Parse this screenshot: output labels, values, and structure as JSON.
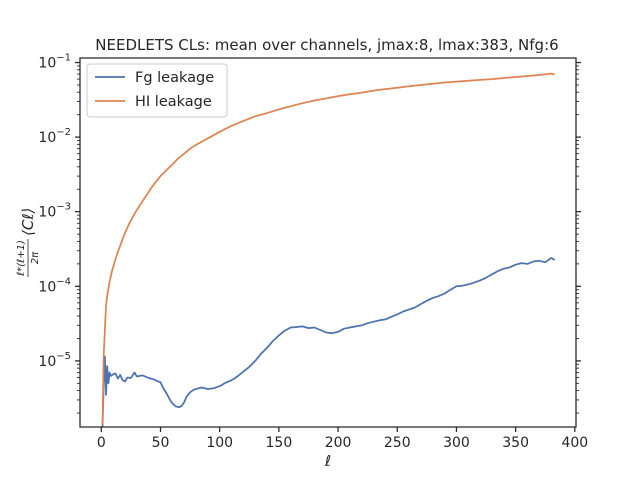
{
  "chart_data": {
    "type": "line",
    "title": "NEEDLETS CLs: mean over channels, jmax:8, lmax:383, Nfg:6",
    "xlabel": "ℓ",
    "ylabel": "ℓ*(ℓ+1)/2π ⟨Cℓ⟩",
    "xlim": [
      -18,
      401
    ],
    "ylim": [
      1.3e-06,
      0.115
    ],
    "yscale": "log",
    "grid": false,
    "legend_position": "top-left",
    "x_ticks": [
      0,
      50,
      100,
      150,
      200,
      250,
      300,
      350,
      400
    ],
    "x_tick_labels": [
      "0",
      "50",
      "100",
      "150",
      "200",
      "250",
      "300",
      "350",
      "400"
    ],
    "y_ticks": [
      1e-05,
      0.0001,
      0.001,
      0.01,
      0.1
    ],
    "y_tick_labels": [
      {
        "base": "10",
        "exp": "−5"
      },
      {
        "base": "10",
        "exp": "−4"
      },
      {
        "base": "10",
        "exp": "−3"
      },
      {
        "base": "10",
        "exp": "−2"
      },
      {
        "base": "10",
        "exp": "−1"
      }
    ],
    "series": [
      {
        "name": "Fg leakage",
        "color": "#4c72b0",
        "points": [
          [
            1,
            1.3e-06
          ],
          [
            2,
            5e-06
          ],
          [
            3,
            1.15e-05
          ],
          [
            4,
            3.5e-06
          ],
          [
            5,
            8.5e-06
          ],
          [
            6,
            5e-06
          ],
          [
            7,
            7e-06
          ],
          [
            8,
            6.3e-06
          ],
          [
            10,
            6.6e-06
          ],
          [
            12,
            6.8e-06
          ],
          [
            14,
            5.8e-06
          ],
          [
            16,
            6.5e-06
          ],
          [
            18,
            5.5e-06
          ],
          [
            20,
            5.3e-06
          ],
          [
            22,
            6e-06
          ],
          [
            25,
            5.9e-06
          ],
          [
            28,
            7e-06
          ],
          [
            30,
            6.2e-06
          ],
          [
            35,
            6.4e-06
          ],
          [
            40,
            5.9e-06
          ],
          [
            45,
            5.6e-06
          ],
          [
            48,
            5.3e-06
          ],
          [
            50,
            5.2e-06
          ],
          [
            52,
            4.4e-06
          ],
          [
            55,
            3.7e-06
          ],
          [
            58,
            3e-06
          ],
          [
            60,
            2.7e-06
          ],
          [
            63,
            2.45e-06
          ],
          [
            66,
            2.4e-06
          ],
          [
            68,
            2.5e-06
          ],
          [
            70,
            2.8e-06
          ],
          [
            72,
            3.3e-06
          ],
          [
            75,
            3.8e-06
          ],
          [
            78,
            4.1e-06
          ],
          [
            80,
            4.2e-06
          ],
          [
            85,
            4.4e-06
          ],
          [
            90,
            4.2e-06
          ],
          [
            95,
            4.3e-06
          ],
          [
            100,
            4.6e-06
          ],
          [
            105,
            5.1e-06
          ],
          [
            110,
            5.5e-06
          ],
          [
            115,
            6.2e-06
          ],
          [
            120,
            7.2e-06
          ],
          [
            125,
            8.3e-06
          ],
          [
            130,
            1e-05
          ],
          [
            135,
            1.25e-05
          ],
          [
            140,
            1.5e-05
          ],
          [
            145,
            1.85e-05
          ],
          [
            150,
            2.2e-05
          ],
          [
            155,
            2.55e-05
          ],
          [
            160,
            2.8e-05
          ],
          [
            165,
            2.85e-05
          ],
          [
            170,
            2.9e-05
          ],
          [
            175,
            2.75e-05
          ],
          [
            180,
            2.8e-05
          ],
          [
            185,
            2.6e-05
          ],
          [
            190,
            2.4e-05
          ],
          [
            195,
            2.35e-05
          ],
          [
            200,
            2.45e-05
          ],
          [
            205,
            2.7e-05
          ],
          [
            210,
            2.8e-05
          ],
          [
            215,
            2.9e-05
          ],
          [
            220,
            3e-05
          ],
          [
            225,
            3.2e-05
          ],
          [
            230,
            3.35e-05
          ],
          [
            235,
            3.5e-05
          ],
          [
            240,
            3.6e-05
          ],
          [
            245,
            3.9e-05
          ],
          [
            250,
            4.2e-05
          ],
          [
            255,
            4.6e-05
          ],
          [
            260,
            4.9e-05
          ],
          [
            265,
            5.2e-05
          ],
          [
            270,
            5.8e-05
          ],
          [
            275,
            6.4e-05
          ],
          [
            280,
            7e-05
          ],
          [
            285,
            7.4e-05
          ],
          [
            290,
            8e-05
          ],
          [
            295,
            9e-05
          ],
          [
            300,
            0.0001
          ],
          [
            305,
            0.000102
          ],
          [
            310,
            0.000106
          ],
          [
            315,
            0.000112
          ],
          [
            320,
            0.00012
          ],
          [
            325,
            0.00013
          ],
          [
            330,
            0.000145
          ],
          [
            335,
            0.00016
          ],
          [
            340,
            0.000172
          ],
          [
            345,
            0.00018
          ],
          [
            350,
            0.000195
          ],
          [
            355,
            0.000205
          ],
          [
            360,
            0.0002
          ],
          [
            365,
            0.000215
          ],
          [
            370,
            0.00022
          ],
          [
            375,
            0.00021
          ],
          [
            380,
            0.00024
          ],
          [
            383,
            0.000225
          ]
        ]
      },
      {
        "name": "HI leakage",
        "color": "#dd8452",
        "points": [
          [
            1,
            1.4e-06
          ],
          [
            2,
            1.2e-05
          ],
          [
            3,
            2.6e-05
          ],
          [
            4,
            5.5e-05
          ],
          [
            5,
            7.5e-05
          ],
          [
            7,
            0.000115
          ],
          [
            9,
            0.00016
          ],
          [
            10,
            0.00018
          ],
          [
            12,
            0.00023
          ],
          [
            14,
            0.00029
          ],
          [
            16,
            0.00035
          ],
          [
            18,
            0.00043
          ],
          [
            20,
            0.00052
          ],
          [
            23,
            0.00066
          ],
          [
            26,
            0.00082
          ],
          [
            30,
            0.00105
          ],
          [
            35,
            0.0014
          ],
          [
            40,
            0.00185
          ],
          [
            45,
            0.0024
          ],
          [
            50,
            0.003
          ],
          [
            55,
            0.0036
          ],
          [
            60,
            0.0043
          ],
          [
            65,
            0.0052
          ],
          [
            70,
            0.006
          ],
          [
            75,
            0.007
          ],
          [
            80,
            0.0079
          ],
          [
            90,
            0.0096
          ],
          [
            100,
            0.0118
          ],
          [
            110,
            0.0142
          ],
          [
            120,
            0.0165
          ],
          [
            130,
            0.019
          ],
          [
            140,
            0.021
          ],
          [
            150,
            0.0235
          ],
          [
            160,
            0.026
          ],
          [
            170,
            0.0285
          ],
          [
            180,
            0.031
          ],
          [
            190,
            0.033
          ],
          [
            200,
            0.0355
          ],
          [
            210,
            0.0375
          ],
          [
            220,
            0.0395
          ],
          [
            230,
            0.042
          ],
          [
            240,
            0.044
          ],
          [
            250,
            0.046
          ],
          [
            260,
            0.048
          ],
          [
            270,
            0.05
          ],
          [
            280,
            0.052
          ],
          [
            290,
            0.054
          ],
          [
            300,
            0.0555
          ],
          [
            310,
            0.057
          ],
          [
            320,
            0.0585
          ],
          [
            330,
            0.06
          ],
          [
            340,
            0.062
          ],
          [
            350,
            0.064
          ],
          [
            360,
            0.066
          ],
          [
            370,
            0.068
          ],
          [
            380,
            0.071
          ],
          [
            383,
            0.069
          ]
        ]
      }
    ]
  }
}
